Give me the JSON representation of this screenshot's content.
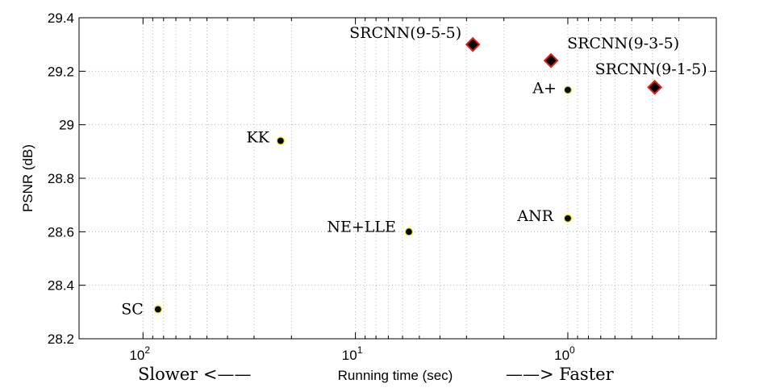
{
  "chart_data": {
    "type": "scatter",
    "title": "",
    "xlabel": "Running time (sec)",
    "ylabel": "PSNR (dB)",
    "xscale": "log-reversed",
    "xlim": [
      200,
      0.2
    ],
    "ylim": [
      28.2,
      29.4
    ],
    "x_ticks": [
      {
        "value": 100,
        "base": "10",
        "exp": "2"
      },
      {
        "value": 10,
        "base": "10",
        "exp": "1"
      },
      {
        "value": 1,
        "base": "10",
        "exp": "0"
      }
    ],
    "y_ticks": [
      "28.2",
      "28.4",
      "28.6",
      "28.8",
      "29",
      "29.2",
      "29.4"
    ],
    "grid": true,
    "left_note": "Slower <——",
    "right_note": "——> Faster",
    "series": [
      {
        "marker": "circle",
        "color": "#000000",
        "edge_color": "#e8e800",
        "points": [
          {
            "label": "SC",
            "x": 85,
            "y": 28.31
          },
          {
            "label": "KK",
            "x": 22.5,
            "y": 28.94
          },
          {
            "label": "NE+LLE",
            "x": 5.6,
            "y": 28.6
          },
          {
            "label": "ANR",
            "x": 1.0,
            "y": 28.65
          },
          {
            "label": "A+",
            "x": 1.0,
            "y": 29.13
          }
        ]
      },
      {
        "marker": "diamond",
        "color": "#000000",
        "edge_color": "#e0201e",
        "points": [
          {
            "label": "SRCNN(9-5-5)",
            "x": 2.8,
            "y": 29.3
          },
          {
            "label": "SRCNN(9-3-5)",
            "x": 1.2,
            "y": 29.24
          },
          {
            "label": "SRCNN(9-1-5)",
            "x": 0.39,
            "y": 29.14
          }
        ]
      }
    ]
  }
}
